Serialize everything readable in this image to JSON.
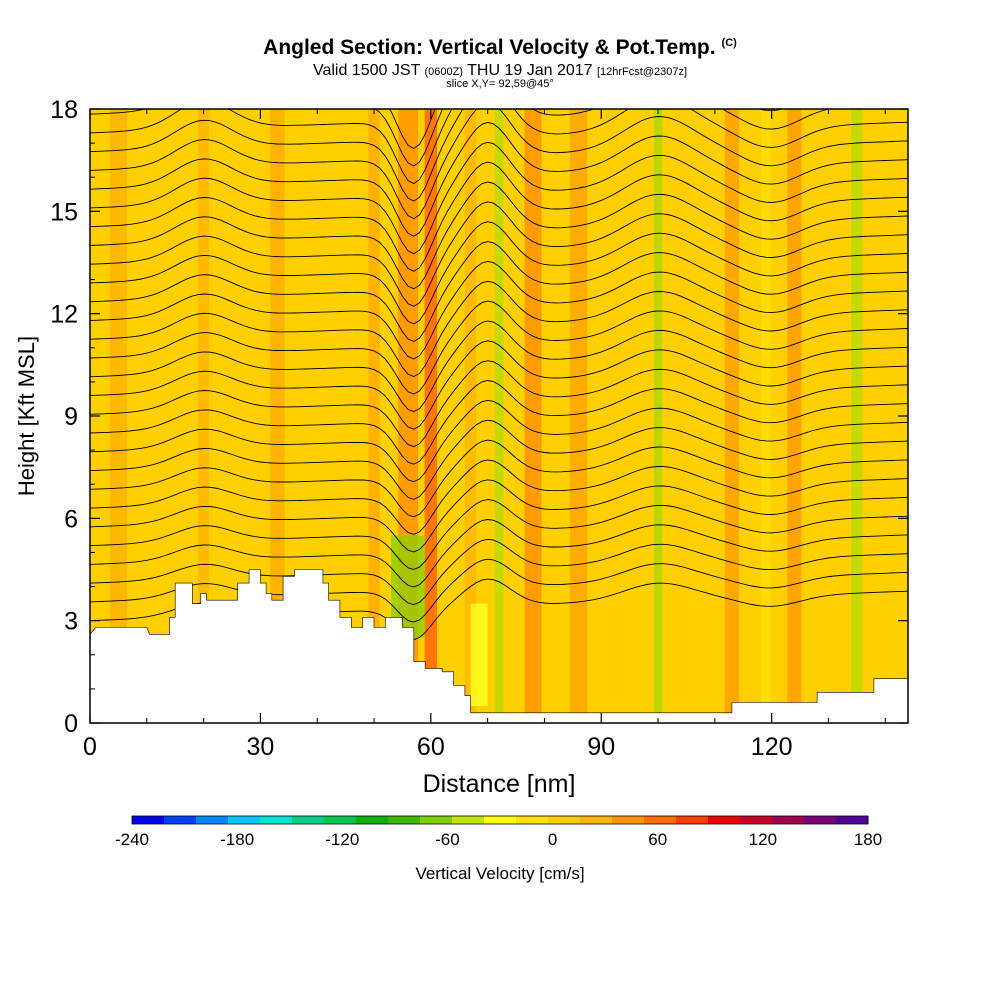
{
  "title": {
    "main": "Angled Section: Vertical Velocity & Pot.Temp.",
    "units": "(C)",
    "valid_prefix": "Valid 1500 JST",
    "valid_z": "(0600Z)",
    "valid_date": "THU 19 Jan 2017",
    "forecast": "[12hrFcst@2307z]",
    "slice": "slice X,Y= 92,59@45°"
  },
  "chart_data": {
    "type": "heatmap",
    "title": "Angled Section: Vertical Velocity & Pot.Temp.",
    "xlabel": "Distance [nm]",
    "ylabel": "Height [Kft MSL]",
    "xlim": [
      0,
      144
    ],
    "ylim": [
      0,
      18
    ],
    "x_ticks": [
      0,
      30,
      60,
      90,
      120
    ],
    "y_ticks": [
      0,
      3,
      6,
      9,
      12,
      15,
      18
    ],
    "colorbar": {
      "title": "Vertical Velocity [cm/s]",
      "tick_labels": [
        -240,
        -180,
        -120,
        -60,
        0,
        60,
        120,
        180
      ],
      "bounds": [
        -240,
        -210,
        -180,
        -150,
        -120,
        -90,
        -60,
        -30,
        0,
        30,
        60,
        90,
        120,
        150,
        180
      ],
      "colors": [
        "#0000f0",
        "#0040ff",
        "#0088ff",
        "#00c8ff",
        "#00e6d2",
        "#00d28c",
        "#00c850",
        "#10b010",
        "#40b800",
        "#80d000",
        "#bfe600",
        "#ffff00",
        "#ffe000",
        "#ffcc00",
        "#ffb400",
        "#ff9600",
        "#ff6e00",
        "#ff3c00",
        "#ee0000",
        "#c80028",
        "#a00050",
        "#780078",
        "#500096"
      ]
    },
    "terrain_kft": [
      [
        0,
        2.6
      ],
      [
        1,
        2.8
      ],
      [
        10,
        2.8
      ],
      [
        10.5,
        2.6
      ],
      [
        11,
        2.6
      ],
      [
        11.5,
        2.6
      ],
      [
        13,
        2.6
      ],
      [
        14,
        2.6
      ],
      [
        14,
        3.1
      ],
      [
        15,
        3.1
      ],
      [
        15,
        4.1
      ],
      [
        18,
        4.1
      ],
      [
        18,
        3.5
      ],
      [
        19.5,
        3.5
      ],
      [
        19.5,
        3.8
      ],
      [
        20.5,
        3.8
      ],
      [
        20.5,
        3.6
      ],
      [
        26,
        3.6
      ],
      [
        26,
        4.1
      ],
      [
        28,
        4.1
      ],
      [
        28,
        4.5
      ],
      [
        30,
        4.5
      ],
      [
        30,
        4.1
      ],
      [
        31,
        4.1
      ],
      [
        31,
        3.8
      ],
      [
        32,
        3.8
      ],
      [
        32,
        3.6
      ],
      [
        34,
        3.6
      ],
      [
        34,
        4.3
      ],
      [
        36,
        4.3
      ],
      [
        36,
        4.5
      ],
      [
        41,
        4.5
      ],
      [
        41,
        4.1
      ],
      [
        42,
        4.1
      ],
      [
        42,
        3.6
      ],
      [
        44,
        3.6
      ],
      [
        44,
        3.1
      ],
      [
        46,
        3.1
      ],
      [
        46,
        2.8
      ],
      [
        48,
        2.8
      ],
      [
        48,
        3.1
      ],
      [
        50,
        3.1
      ],
      [
        50,
        2.8
      ],
      [
        52,
        2.8
      ],
      [
        52,
        3.1
      ],
      [
        55,
        3.1
      ],
      [
        55,
        2.8
      ],
      [
        57,
        2.8
      ],
      [
        57,
        1.8
      ],
      [
        59,
        1.8
      ],
      [
        59,
        1.6
      ],
      [
        62,
        1.6
      ],
      [
        62,
        1.5
      ],
      [
        64,
        1.5
      ],
      [
        64,
        1.1
      ],
      [
        66,
        1.1
      ],
      [
        66,
        0.8
      ],
      [
        67,
        0.8
      ],
      [
        67,
        0.3
      ],
      [
        112,
        0.3
      ],
      [
        113,
        0.3
      ],
      [
        113,
        0.6
      ],
      [
        128,
        0.6
      ],
      [
        128,
        0.9
      ],
      [
        138,
        0.9
      ],
      [
        138,
        1.3
      ],
      [
        144,
        1.3
      ],
      [
        144,
        0
      ],
      [
        0,
        0
      ]
    ],
    "theta_contours_c": [
      -4,
      -2,
      0,
      2,
      4,
      6,
      8,
      10,
      12,
      14,
      16,
      18,
      20,
      22,
      24,
      26,
      28,
      30,
      32,
      34,
      36,
      38,
      40,
      42,
      44,
      46,
      48,
      50,
      52
    ]
  }
}
